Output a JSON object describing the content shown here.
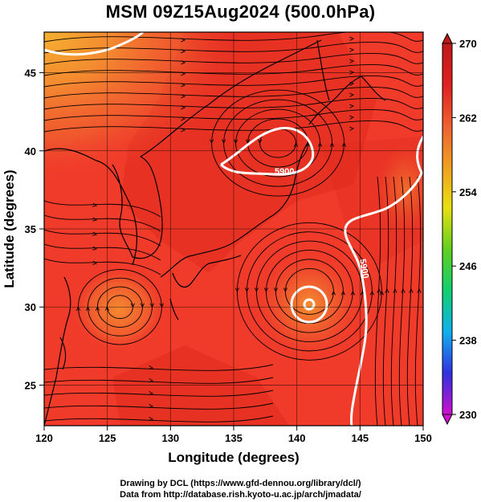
{
  "title": "MSM 09Z15Aug2024 (500.0hPa)",
  "x_axis": {
    "label": "Longitude (degrees)",
    "min": 120,
    "max": 150,
    "ticks": [
      "120",
      "125",
      "130",
      "135",
      "140",
      "145",
      "150"
    ]
  },
  "y_axis": {
    "label": "Latitude  (degrees)",
    "min": 22.4,
    "max": 47.6,
    "ticks": [
      "25",
      "30",
      "35",
      "40",
      "45"
    ]
  },
  "colorbar": {
    "min": 230,
    "max": 270,
    "ticks": [
      "270",
      "262",
      "254",
      "246",
      "238",
      "230"
    ],
    "gradient_colors": [
      "#d010d0",
      "#3030e0",
      "#10b0f0",
      "#10d070",
      "#60d020",
      "#e8e010",
      "#f0a020",
      "#f06030",
      "#e02020",
      "#c01818"
    ]
  },
  "contours": [
    {
      "label": "5900",
      "color": "#ffffff"
    },
    {
      "label": "5900",
      "color": "#ffffff"
    }
  ],
  "field_colors": {
    "base": "#f03a2a",
    "dark": "#d82418",
    "warm": "#f27030",
    "orange": "#f4a030",
    "land_line": "#000000"
  },
  "credits": {
    "line1": "Drawing by DCL (https://www.gfd-dennou.org/library/dcl/)",
    "line2": "Data from http://database.rish.kyoto-u.ac.jp/arch/jmadata/"
  }
}
